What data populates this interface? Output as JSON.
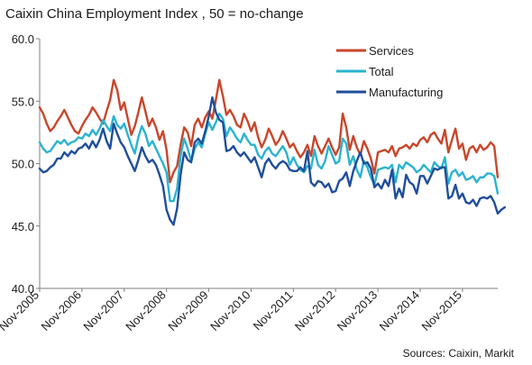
{
  "chart_data": {
    "type": "line",
    "title": "Caixin China Employment Index , 50 = no-change",
    "source": "Sources: Caixin, Markit",
    "xlabel": "",
    "ylabel": "",
    "ylim": [
      40.0,
      60.0
    ],
    "yticks": [
      "40.0",
      "45.0",
      "50.0",
      "55.0",
      "60.0"
    ],
    "xticks": [
      "Nov-2005",
      "Nov-2006",
      "Nov-2007",
      "Nov-2008",
      "Nov-2009",
      "Nov-2010",
      "Nov-2011",
      "Nov-2012",
      "Nov-2013",
      "Nov-2014",
      "Nov-2015"
    ],
    "grid": false,
    "legend": "top-right",
    "x_start": "Nov-2005",
    "frequency": "monthly",
    "series": [
      {
        "name": "Services",
        "color": "#C8462B",
        "values": [
          54.5,
          54.0,
          53.2,
          52.6,
          52.9,
          53.4,
          53.8,
          54.3,
          53.7,
          53.1,
          52.6,
          52.4,
          53.0,
          53.5,
          53.9,
          54.5,
          54.1,
          53.6,
          53.2,
          54.2,
          55.1,
          56.7,
          55.9,
          54.3,
          54.9,
          53.6,
          52.3,
          53.0,
          54.1,
          55.3,
          54.2,
          53.0,
          53.6,
          52.9,
          51.9,
          52.6,
          51.1,
          48.5,
          49.3,
          49.8,
          51.5,
          52.9,
          52.5,
          51.4,
          53.1,
          53.6,
          52.9,
          53.7,
          54.2,
          53.6,
          55.1,
          56.7,
          55.4,
          53.9,
          54.3,
          53.8,
          53.1,
          52.9,
          54.0,
          53.4,
          52.6,
          53.3,
          52.1,
          51.3,
          51.9,
          52.8,
          52.2,
          51.5,
          51.9,
          52.6,
          52.0,
          51.3,
          51.6,
          51.0,
          50.5,
          50.9,
          51.5,
          50.6,
          52.2,
          51.4,
          50.8,
          51.4,
          52.0,
          51.3,
          50.7,
          51.3,
          54.0,
          52.9,
          51.1,
          52.2,
          51.3,
          50.7,
          51.8,
          51.2,
          50.4,
          49.2,
          50.9,
          51.0,
          51.1,
          50.9,
          51.4,
          50.6,
          51.2,
          51.3,
          51.5,
          51.2,
          51.6,
          51.4,
          51.9,
          52.1,
          51.7,
          52.3,
          52.5,
          52.0,
          51.6,
          52.7,
          50.9,
          51.9,
          52.8,
          51.2,
          51.6,
          50.3,
          51.2,
          51.4,
          50.9,
          51.5,
          51.1,
          51.3,
          51.7,
          51.4,
          48.9
        ]
      },
      {
        "name": "Total",
        "color": "#2AB3CF",
        "values": [
          51.7,
          51.2,
          50.9,
          51.0,
          51.4,
          51.8,
          51.6,
          51.9,
          51.5,
          51.7,
          51.8,
          52.1,
          52.0,
          52.4,
          52.2,
          52.7,
          52.3,
          52.8,
          53.5,
          53.0,
          52.6,
          53.8,
          53.1,
          52.8,
          53.2,
          52.3,
          51.5,
          50.8,
          52.1,
          53.0,
          52.4,
          51.4,
          51.8,
          51.2,
          50.6,
          50.0,
          49.3,
          47.0,
          47.0,
          48.0,
          50.6,
          52.0,
          51.2,
          50.2,
          51.2,
          51.7,
          51.3,
          52.4,
          53.3,
          52.7,
          53.3,
          54.0,
          53.6,
          52.2,
          52.9,
          52.5,
          52.0,
          51.7,
          52.4,
          51.9,
          51.5,
          51.5,
          50.7,
          50.4,
          51.0,
          51.3,
          50.8,
          50.6,
          51.0,
          51.4,
          50.9,
          49.9,
          50.5,
          49.9,
          49.5,
          49.3,
          49.8,
          49.6,
          51.1,
          49.9,
          49.6,
          50.2,
          51.4,
          50.7,
          50.0,
          50.2,
          52.0,
          51.6,
          49.9,
          50.6,
          49.5,
          48.9,
          50.2,
          49.7,
          48.9,
          48.3,
          49.5,
          49.6,
          49.7,
          49.6,
          49.9,
          48.5,
          49.9,
          49.6,
          50.1,
          49.9,
          49.7,
          49.3,
          49.5,
          49.9,
          49.6,
          49.3,
          50.1,
          49.8,
          49.6,
          50.5,
          48.4,
          49.3,
          49.5,
          49.0,
          49.3,
          48.7,
          48.8,
          49.0,
          48.5,
          48.9,
          48.9,
          49.2,
          49.2,
          49.0,
          47.6
        ]
      },
      {
        "name": "Manufacturing",
        "color": "#1F4E9A",
        "values": [
          49.6,
          49.3,
          49.4,
          49.7,
          49.9,
          50.4,
          50.4,
          50.9,
          50.6,
          51.0,
          50.8,
          51.2,
          51.3,
          51.6,
          51.2,
          51.8,
          51.3,
          51.9,
          52.8,
          51.8,
          51.2,
          53.2,
          52.4,
          51.7,
          51.3,
          50.6,
          50.0,
          49.4,
          50.3,
          51.3,
          50.6,
          50.1,
          50.3,
          49.9,
          49.1,
          48.2,
          46.3,
          45.5,
          45.1,
          46.4,
          49.1,
          50.9,
          50.3,
          50.1,
          51.7,
          52.0,
          51.6,
          52.6,
          53.8,
          55.3,
          54.1,
          53.5,
          53.3,
          51.0,
          51.1,
          51.4,
          50.9,
          50.6,
          50.9,
          50.5,
          50.1,
          50.5,
          49.7,
          48.9,
          50.0,
          50.4,
          49.9,
          49.6,
          50.0,
          50.2,
          50.0,
          49.5,
          49.4,
          49.4,
          49.7,
          49.4,
          51.0,
          48.5,
          48.2,
          48.6,
          48.5,
          48.1,
          48.4,
          47.7,
          47.8,
          48.6,
          48.8,
          49.3,
          48.2,
          49.4,
          50.2,
          50.9,
          50.0,
          50.1,
          49.6,
          48.1,
          48.4,
          48.0,
          48.7,
          48.2,
          49.5,
          47.2,
          48.0,
          47.3,
          49.1,
          48.5,
          48.3,
          47.6,
          49.0,
          49.0,
          48.4,
          49.0,
          49.6,
          49.5,
          49.7,
          49.7,
          47.2,
          47.4,
          48.3,
          47.2,
          47.6,
          46.9,
          46.8,
          47.1,
          46.6,
          47.2,
          47.3,
          47.2,
          47.4,
          46.9,
          46.0,
          46.3,
          46.5
        ]
      }
    ]
  }
}
